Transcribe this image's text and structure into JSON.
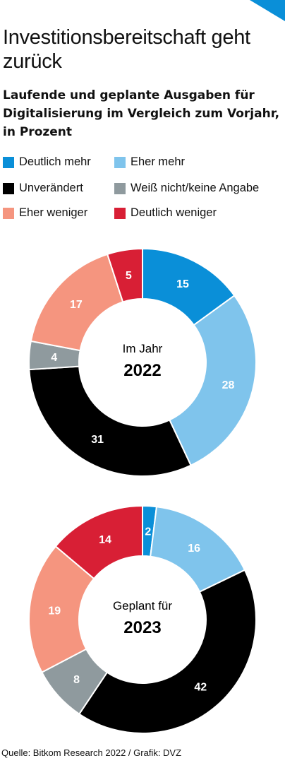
{
  "title": "Investitionsbereitschaft geht zurück",
  "subtitle": "Laufende und geplante Ausgaben für Digitalisierung im Vergleich zum Vorjahr, in Prozent",
  "legend": [
    {
      "label": "Deutlich mehr",
      "color": "#0a8fd8"
    },
    {
      "label": "Eher mehr",
      "color": "#7fc4ec"
    },
    {
      "label": "Unverändert",
      "color": "#000000"
    },
    {
      "label": "Weiß nicht/keine Angabe",
      "color": "#8f9a9e"
    },
    {
      "label": "Eher weniger",
      "color": "#f5957f"
    },
    {
      "label": "Deutlich weniger",
      "color": "#d81f35"
    }
  ],
  "source": "Quelle: Bitkom Research 2022  / Grafik: DVZ",
  "chart_data": [
    {
      "type": "pie",
      "center_label": "Im Jahr",
      "center_year": "2022",
      "categories": [
        "Deutlich mehr",
        "Eher mehr",
        "Unverändert",
        "Weiß nicht/keine Angabe",
        "Eher weniger",
        "Deutlich weniger"
      ],
      "values": [
        15,
        28,
        31,
        4,
        17,
        5
      ],
      "colors": [
        "#0a8fd8",
        "#7fc4ec",
        "#000000",
        "#8f9a9e",
        "#f5957f",
        "#d81f35"
      ],
      "label_colors": [
        "#ffffff",
        "#ffffff",
        "#ffffff",
        "#ffffff",
        "#ffffff",
        "#ffffff"
      ]
    },
    {
      "type": "pie",
      "center_label": "Geplant für",
      "center_year": "2023",
      "categories": [
        "Deutlich mehr",
        "Eher mehr",
        "Unverändert",
        "Weiß nicht/keine Angabe",
        "Eher weniger",
        "Deutlich weniger"
      ],
      "values": [
        2,
        16,
        42,
        8,
        19,
        14
      ],
      "colors": [
        "#0a8fd8",
        "#7fc4ec",
        "#000000",
        "#8f9a9e",
        "#f5957f",
        "#d81f35"
      ],
      "label_colors": [
        "#ffffff",
        "#ffffff",
        "#ffffff",
        "#ffffff",
        "#ffffff",
        "#ffffff"
      ]
    }
  ]
}
